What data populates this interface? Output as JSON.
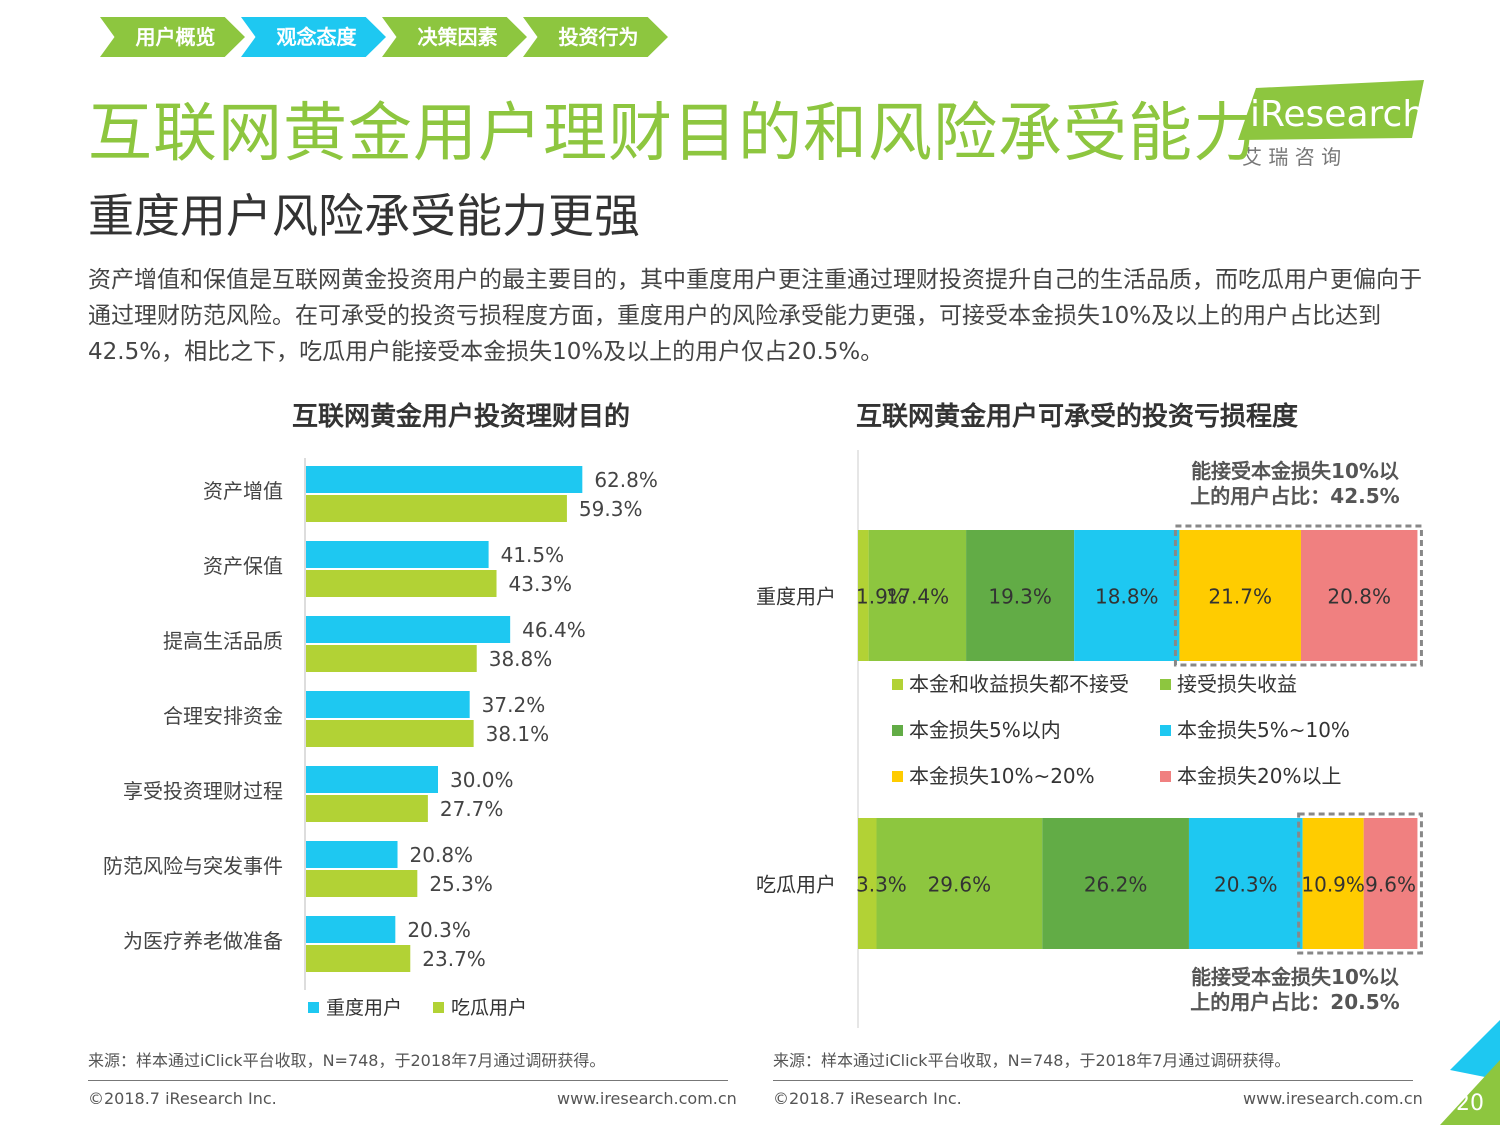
{
  "nav": {
    "crumbs": [
      {
        "label": "用户概览",
        "color": "#8dc63f"
      },
      {
        "label": "观念态度",
        "color": "#1ec8f1"
      },
      {
        "label": "决策因素",
        "color": "#8dc63f"
      },
      {
        "label": "投资行为",
        "color": "#8dc63f"
      }
    ]
  },
  "page": {
    "title": "互联网黄金用户理财目的和风险承受能力",
    "subtitle": "重度用户风险承受能力更强",
    "paragraph": "资产增值和保值是互联网黄金投资用户的最主要目的，其中重度用户更注重通过理财投资提升自己的生活品质，而吃瓜用户更偏向于通过理财防范风险。在可承受的投资亏损程度方面，重度用户的风险承受能力更强，可接受本金损失10%及以上的用户占比达到42.5%，相比之下，吃瓜用户能接受本金损失10%及以上的用户仅占20.5%。",
    "page_number": "20"
  },
  "logo": {
    "text": "iResearch",
    "cn": "艾 瑞 咨 询",
    "color": "#8dc63f"
  },
  "colors": {
    "heavy": "#1ec8f1",
    "casual": "#b2d235",
    "seg1": "#b2d235",
    "seg2": "#8dc63f",
    "seg3": "#62ac46",
    "seg4": "#1ec8f1",
    "seg5": "#ffcc00",
    "seg6": "#f08080"
  },
  "chart_data": [
    {
      "type": "bar",
      "orientation": "horizontal",
      "title": "互联网黄金用户投资理财目的",
      "categories": [
        "资产增值",
        "资产保值",
        "提高生活品质",
        "合理安排资金",
        "享受投资理财过程",
        "防范风险与突发事件",
        "为医疗养老做准备"
      ],
      "series": [
        {
          "name": "重度用户",
          "values": [
            62.8,
            41.5,
            46.4,
            37.2,
            30.0,
            20.8,
            20.3
          ],
          "labels": [
            "62.8%",
            "41.5%",
            "46.4%",
            "37.2%",
            "30.0%",
            "20.8%",
            "20.3%"
          ],
          "color": "#1ec8f1"
        },
        {
          "name": "吃瓜用户",
          "values": [
            59.3,
            43.3,
            38.8,
            38.1,
            27.7,
            25.3,
            23.7
          ],
          "labels": [
            "59.3%",
            "43.3%",
            "38.8%",
            "38.1%",
            "27.7%",
            "25.3%",
            "23.7%"
          ],
          "color": "#b2d235"
        }
      ],
      "unit": "%",
      "legend_position": "bottom",
      "source": "来源：样本通过iClick平台收取，N=748，于2018年7月通过调研获得。"
    },
    {
      "type": "bar",
      "orientation": "horizontal",
      "stacked": true,
      "title": "互联网黄金用户可承受的投资亏损程度",
      "categories": [
        "重度用户",
        "吃瓜用户"
      ],
      "series": [
        {
          "name": "本金和收益损失都不接受",
          "values": [
            1.9,
            3.3
          ],
          "labels": [
            "1.9%",
            "3.3%"
          ],
          "color": "#b2d235"
        },
        {
          "name": "接受损失收益",
          "values": [
            17.4,
            29.6
          ],
          "labels": [
            "17.4%",
            "29.6%"
          ],
          "color": "#8dc63f"
        },
        {
          "name": "本金损失5%以内",
          "values": [
            19.3,
            26.2
          ],
          "labels": [
            "19.3%",
            "26.2%"
          ],
          "color": "#62ac46"
        },
        {
          "name": "本金损失5%~10%",
          "values": [
            18.8,
            20.3
          ],
          "labels": [
            "18.8%",
            "20.3%"
          ],
          "color": "#1ec8f1"
        },
        {
          "name": "本金损失10%~20%",
          "values": [
            21.7,
            10.9
          ],
          "labels": [
            "21.7%",
            "10.9%"
          ],
          "color": "#ffcc00"
        },
        {
          "name": "本金损失20%以上",
          "values": [
            20.8,
            9.6
          ],
          "labels": [
            "20.8%",
            "9.6%"
          ],
          "color": "#f08080"
        }
      ],
      "annotations": [
        {
          "line1": "能接受本金损失10%以",
          "line2": "上的用户占比：42.5%"
        },
        {
          "line1": "能接受本金损失10%以",
          "line2": "上的用户占比：20.5%"
        }
      ],
      "unit": "%",
      "legend_position": "middle",
      "source": "来源：样本通过iClick平台收取，N=748，于2018年7月通过调研获得。"
    }
  ],
  "footer": {
    "copyright": "©2018.7 iResearch Inc.",
    "website": "www.iresearch.com.cn"
  }
}
